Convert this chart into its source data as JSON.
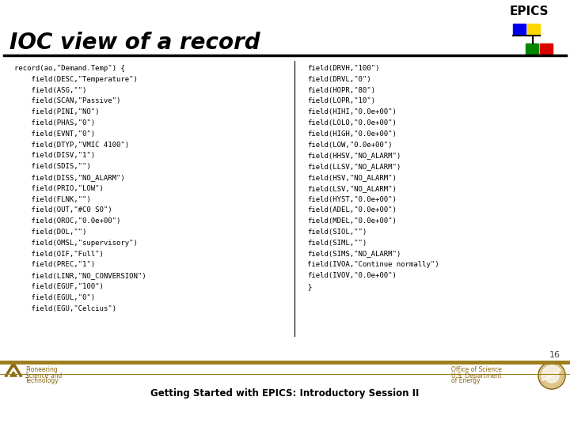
{
  "title": "IOC view of a record",
  "epics_text": "EPICS",
  "slide_number": "16",
  "footer_text": "Getting Started with EPICS: Introductory Session II",
  "footer_left1": "Pioneering",
  "footer_left2": "Science and",
  "footer_left3": "Technology",
  "footer_right1": "Office of Science",
  "footer_right2": "U.S. Department",
  "footer_right3": "of Energy",
  "background_color": "#ffffff",
  "title_color": "#000000",
  "epics_color": "#000000",
  "code_color": "#000000",
  "footer_color": "#8B6914",
  "header_line_color": "#000000",
  "footer_line_color": "#9B7D1A",
  "divider_line_color": "#000000",
  "left_column": [
    "record(ao,\"Demand.Temp\") {",
    "    field(DESC,\"Temperature\")",
    "    field(ASG,\"\")",
    "    field(SCAN,\"Passive\")",
    "    field(PINI,\"NO\")",
    "    field(PHAS,\"0\")",
    "    field(EVNT,\"0\")",
    "    field(DTYP,\"VMIC 4100\")",
    "    field(DISV,\"1\")",
    "    field(SDIS,\"\")",
    "    field(DISS,\"NO_ALARM\")",
    "    field(PRIO,\"LOW\")",
    "    field(FLNK,\"\")",
    "    field(OUT,\"#C0 S0\")",
    "    field(OROC,\"0.0e+00\")",
    "    field(DOL,\"\")",
    "    field(OMSL,\"supervisory\")",
    "    field(OIF,\"Full\")",
    "    field(PREC,\"1\")",
    "    field(LINR,\"NO_CONVERSION\")",
    "    field(EGUF,\"100\")",
    "    field(EGUL,\"0\")",
    "    field(EGU,\"Celcius\")"
  ],
  "right_column": [
    "field(DRVH,\"100\")",
    "field(DRVL,\"0\")",
    "field(HOPR,\"80\")",
    "field(LOPR,\"10\")",
    "field(HIHI,\"0.0e+00\")",
    "field(LOLO,\"0.0e+00\")",
    "field(HIGH,\"0.0e+00\")",
    "field(LOW,\"0.0e+00\")",
    "field(HHSV,\"NO_ALARM\")",
    "field(LLSV,\"NO_ALARM\")",
    "field(HSV,\"NO_ALARM\")",
    "field(LSV,\"NO_ALARM\")",
    "field(HYST,\"0.0e+00\")",
    "field(ADEL,\"0.0e+00\")",
    "field(MDEL,\"0.0e+00\")",
    "field(SIOL,\"\")",
    "field(SIML,\"\")",
    "field(SIMS,\"NO_ALARM\")",
    "field(IVOA,\"Continue normally\")",
    "field(IVOV,\"0.0e+00\")",
    "}"
  ],
  "epics_logo_colors": {
    "blue": "#0000EE",
    "yellow": "#FFD700",
    "green": "#008800",
    "red": "#DD0000",
    "line": "#000000"
  }
}
